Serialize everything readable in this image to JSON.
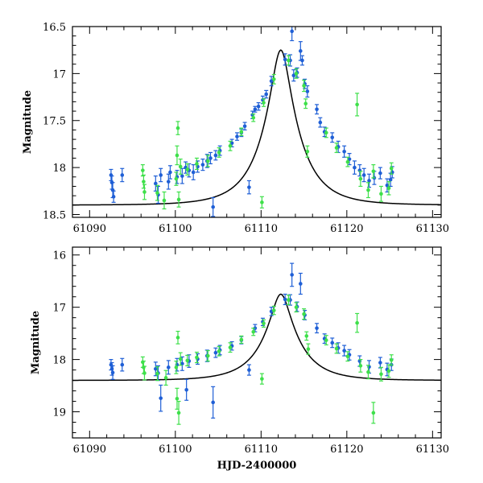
{
  "chart_data": [
    {
      "type": "scatter",
      "panel": "top",
      "title": "",
      "xlabel": "",
      "ylabel": "Magnitude",
      "xlim": [
        61088,
        61131
      ],
      "ylim": [
        18.53,
        16.5
      ],
      "y_inverted": true,
      "xticks": [
        61090,
        61100,
        61110,
        61120,
        61130
      ],
      "xtick_labels": [
        "61090",
        "61100",
        "61110",
        "61120",
        "61130"
      ],
      "yticks": [
        16.5,
        17,
        17.5,
        18,
        18.5
      ],
      "ytick_labels": [
        "16.5",
        "17",
        "17.5",
        "18",
        "18.5"
      ],
      "minor_x_step": 2,
      "minor_y_step": 0.1,
      "model": {
        "name": "model curve",
        "color": "#000000",
        "peak_x": 61112.3,
        "peak_mag": 16.75,
        "baseline_mag": 18.4,
        "t_e": 4.3,
        "u0": 0.235
      },
      "series": [
        {
          "name": "blue",
          "color": "#1f5fd6",
          "points": [
            [
              61092.5,
              18.08,
              0.06
            ],
            [
              61092.6,
              18.16,
              0.07
            ],
            [
              61092.7,
              18.24,
              0.08
            ],
            [
              61092.8,
              18.31,
              0.06
            ],
            [
              61093.8,
              18.08,
              0.07
            ],
            [
              61097.7,
              18.17,
              0.08
            ],
            [
              61098.0,
              18.29,
              0.09
            ],
            [
              61098.3,
              18.08,
              0.07
            ],
            [
              61099.2,
              18.15,
              0.08
            ],
            [
              61099.4,
              18.05,
              0.07
            ],
            [
              61100.2,
              18.1,
              0.07
            ],
            [
              61100.8,
              18.09,
              0.08
            ],
            [
              61101.2,
              18.0,
              0.06
            ],
            [
              61101.6,
              18.03,
              0.07
            ],
            [
              61102.1,
              18.05,
              0.08
            ],
            [
              61102.6,
              17.99,
              0.06
            ],
            [
              61103.2,
              17.97,
              0.06
            ],
            [
              61103.7,
              17.93,
              0.07
            ],
            [
              61104.1,
              17.9,
              0.06
            ],
            [
              61104.4,
              18.42,
              0.1
            ],
            [
              61104.7,
              17.87,
              0.05
            ],
            [
              61105.2,
              17.82,
              0.05
            ],
            [
              61106.6,
              17.74,
              0.04
            ],
            [
              61107.2,
              17.67,
              0.04
            ],
            [
              61107.7,
              17.63,
              0.04
            ],
            [
              61108.1,
              17.56,
              0.04
            ],
            [
              61108.6,
              18.21,
              0.07
            ],
            [
              61109.0,
              17.44,
              0.04
            ],
            [
              61109.3,
              17.38,
              0.03
            ],
            [
              61109.7,
              17.35,
              0.04
            ],
            [
              61110.2,
              17.28,
              0.04
            ],
            [
              61110.6,
              17.22,
              0.04
            ],
            [
              61111.2,
              17.08,
              0.05
            ],
            [
              61112.8,
              16.85,
              0.06
            ],
            [
              61113.4,
              16.86,
              0.06
            ],
            [
              61113.6,
              16.55,
              0.1
            ],
            [
              61113.8,
              17.02,
              0.06
            ],
            [
              61114.2,
              16.99,
              0.05
            ],
            [
              61114.6,
              16.76,
              0.1
            ],
            [
              61114.8,
              16.86,
              0.05
            ],
            [
              61115.1,
              17.11,
              0.05
            ],
            [
              61115.4,
              17.19,
              0.06
            ],
            [
              61116.5,
              17.38,
              0.05
            ],
            [
              61116.9,
              17.52,
              0.05
            ],
            [
              61117.4,
              17.62,
              0.05
            ],
            [
              61118.3,
              17.68,
              0.05
            ],
            [
              61119.0,
              17.78,
              0.06
            ],
            [
              61119.7,
              17.83,
              0.06
            ],
            [
              61120.3,
              17.91,
              0.06
            ],
            [
              61120.9,
              18.0,
              0.07
            ],
            [
              61121.5,
              18.03,
              0.06
            ],
            [
              61122.0,
              18.08,
              0.07
            ],
            [
              61122.6,
              18.14,
              0.07
            ],
            [
              61123.2,
              18.11,
              0.07
            ],
            [
              61123.9,
              18.06,
              0.06
            ],
            [
              61124.7,
              18.19,
              0.07
            ],
            [
              61125.1,
              18.13,
              0.07
            ],
            [
              61125.3,
              18.05,
              0.06
            ]
          ]
        },
        {
          "name": "green",
          "color": "#3ee04a",
          "points": [
            [
              61096.2,
              18.03,
              0.06
            ],
            [
              61096.3,
              18.15,
              0.07
            ],
            [
              61096.4,
              18.26,
              0.08
            ],
            [
              61097.9,
              18.27,
              0.08
            ],
            [
              61098.7,
              18.35,
              0.09
            ],
            [
              61100.1,
              18.12,
              0.07
            ],
            [
              61100.2,
              17.87,
              0.1
            ],
            [
              61100.3,
              17.58,
              0.07
            ],
            [
              61100.4,
              18.34,
              0.08
            ],
            [
              61100.6,
              17.99,
              0.08
            ],
            [
              61101.4,
              18.02,
              0.06
            ],
            [
              61102.5,
              17.96,
              0.06
            ],
            [
              61103.8,
              17.93,
              0.06
            ],
            [
              61105.1,
              17.84,
              0.05
            ],
            [
              61106.4,
              17.77,
              0.05
            ],
            [
              61107.7,
              17.62,
              0.04
            ],
            [
              61109.1,
              17.47,
              0.04
            ],
            [
              61110.1,
              18.37,
              0.06
            ],
            [
              61110.3,
              17.31,
              0.04
            ],
            [
              61111.5,
              17.06,
              0.05
            ],
            [
              61113.2,
              16.86,
              0.05
            ],
            [
              61114.1,
              17.0,
              0.05
            ],
            [
              61115.0,
              17.13,
              0.06
            ],
            [
              61115.2,
              17.32,
              0.05
            ],
            [
              61115.4,
              17.83,
              0.06
            ],
            [
              61117.6,
              17.63,
              0.05
            ],
            [
              61118.8,
              17.79,
              0.05
            ],
            [
              61120.1,
              17.94,
              0.05
            ],
            [
              61121.2,
              17.33,
              0.12
            ],
            [
              61121.6,
              18.12,
              0.08
            ],
            [
              61122.5,
              18.24,
              0.08
            ],
            [
              61123.1,
              18.04,
              0.07
            ],
            [
              61124.0,
              18.28,
              0.08
            ],
            [
              61124.9,
              18.22,
              0.07
            ],
            [
              61125.2,
              18.01,
              0.06
            ]
          ]
        }
      ]
    },
    {
      "type": "scatter",
      "panel": "bottom",
      "title": "",
      "xlabel": "HJD-2400000",
      "ylabel": "Magnitude",
      "xlim": [
        61088,
        61131
      ],
      "ylim": [
        19.5,
        15.85
      ],
      "y_inverted": true,
      "xticks": [
        61090,
        61100,
        61110,
        61120,
        61130
      ],
      "xtick_labels": [
        "61090",
        "61100",
        "61110",
        "61120",
        "61130"
      ],
      "yticks": [
        16,
        17,
        18,
        19
      ],
      "ytick_labels": [
        "16",
        "17",
        "18",
        "19"
      ],
      "minor_x_step": 2,
      "minor_y_step": 0.2,
      "model": {
        "name": "model curve",
        "color": "#000000",
        "peak_x": 61112.3,
        "peak_mag": 16.75,
        "baseline_mag": 18.4,
        "t_e": 4.3,
        "u0": 0.235
      },
      "series": [
        {
          "name": "blue",
          "color": "#1f5fd6",
          "points": [
            [
              61092.5,
              18.1,
              0.1
            ],
            [
              61092.6,
              18.18,
              0.12
            ],
            [
              61092.7,
              18.25,
              0.13
            ],
            [
              61093.8,
              18.1,
              0.12
            ],
            [
              61097.7,
              18.18,
              0.13
            ],
            [
              61098.0,
              18.26,
              0.14
            ],
            [
              61098.3,
              18.74,
              0.25
            ],
            [
              61099.2,
              18.15,
              0.13
            ],
            [
              61100.2,
              18.1,
              0.12
            ],
            [
              61100.8,
              18.08,
              0.13
            ],
            [
              61101.3,
              18.58,
              0.2
            ],
            [
              61101.6,
              18.03,
              0.12
            ],
            [
              61102.6,
              17.99,
              0.1
            ],
            [
              61103.7,
              17.93,
              0.11
            ],
            [
              61104.4,
              18.82,
              0.3
            ],
            [
              61104.7,
              17.87,
              0.09
            ],
            [
              61105.2,
              17.82,
              0.09
            ],
            [
              61106.6,
              17.74,
              0.08
            ],
            [
              61107.7,
              17.63,
              0.07
            ],
            [
              61108.6,
              18.2,
              0.1
            ],
            [
              61109.3,
              17.4,
              0.07
            ],
            [
              61110.2,
              17.28,
              0.07
            ],
            [
              61111.2,
              17.08,
              0.08
            ],
            [
              61112.8,
              16.85,
              0.1
            ],
            [
              61113.4,
              16.86,
              0.1
            ],
            [
              61113.6,
              16.38,
              0.22
            ],
            [
              61114.2,
              16.99,
              0.09
            ],
            [
              61114.6,
              16.55,
              0.2
            ],
            [
              61115.1,
              17.15,
              0.09
            ],
            [
              61116.5,
              17.4,
              0.09
            ],
            [
              61117.4,
              17.6,
              0.09
            ],
            [
              61118.3,
              17.68,
              0.09
            ],
            [
              61119.0,
              17.78,
              0.1
            ],
            [
              61119.7,
              17.83,
              0.1
            ],
            [
              61120.3,
              17.91,
              0.1
            ],
            [
              61121.5,
              18.03,
              0.1
            ],
            [
              61122.6,
              18.14,
              0.12
            ],
            [
              61123.9,
              18.06,
              0.1
            ],
            [
              61124.7,
              18.19,
              0.12
            ],
            [
              61125.2,
              18.1,
              0.11
            ]
          ]
        },
        {
          "name": "green",
          "color": "#3ee04a",
          "points": [
            [
              61096.2,
              18.05,
              0.1
            ],
            [
              61096.3,
              18.15,
              0.12
            ],
            [
              61096.4,
              18.26,
              0.13
            ],
            [
              61097.9,
              18.27,
              0.13
            ],
            [
              61098.9,
              18.35,
              0.14
            ],
            [
              61100.1,
              18.15,
              0.12
            ],
            [
              61100.2,
              18.75,
              0.2
            ],
            [
              61100.3,
              17.58,
              0.12
            ],
            [
              61100.4,
              19.02,
              0.22
            ],
            [
              61100.6,
              17.99,
              0.12
            ],
            [
              61101.4,
              18.02,
              0.1
            ],
            [
              61102.5,
              17.96,
              0.1
            ],
            [
              61103.8,
              17.93,
              0.1
            ],
            [
              61105.1,
              17.84,
              0.09
            ],
            [
              61106.4,
              17.77,
              0.09
            ],
            [
              61107.7,
              17.62,
              0.07
            ],
            [
              61109.1,
              17.47,
              0.07
            ],
            [
              61110.1,
              18.37,
              0.1
            ],
            [
              61110.3,
              17.31,
              0.07
            ],
            [
              61111.5,
              17.06,
              0.08
            ],
            [
              61113.2,
              16.86,
              0.09
            ],
            [
              61114.1,
              17.0,
              0.09
            ],
            [
              61115.0,
              17.13,
              0.1
            ],
            [
              61115.3,
              17.55,
              0.08
            ],
            [
              61115.5,
              17.8,
              0.1
            ],
            [
              61117.6,
              17.63,
              0.09
            ],
            [
              61118.8,
              17.79,
              0.09
            ],
            [
              61120.1,
              17.94,
              0.09
            ],
            [
              61121.2,
              17.3,
              0.18
            ],
            [
              61121.6,
              18.12,
              0.12
            ],
            [
              61122.5,
              18.24,
              0.13
            ],
            [
              61123.1,
              19.02,
              0.2
            ],
            [
              61124.0,
              18.28,
              0.13
            ],
            [
              61124.9,
              18.22,
              0.12
            ],
            [
              61125.2,
              18.01,
              0.1
            ]
          ]
        }
      ]
    }
  ]
}
